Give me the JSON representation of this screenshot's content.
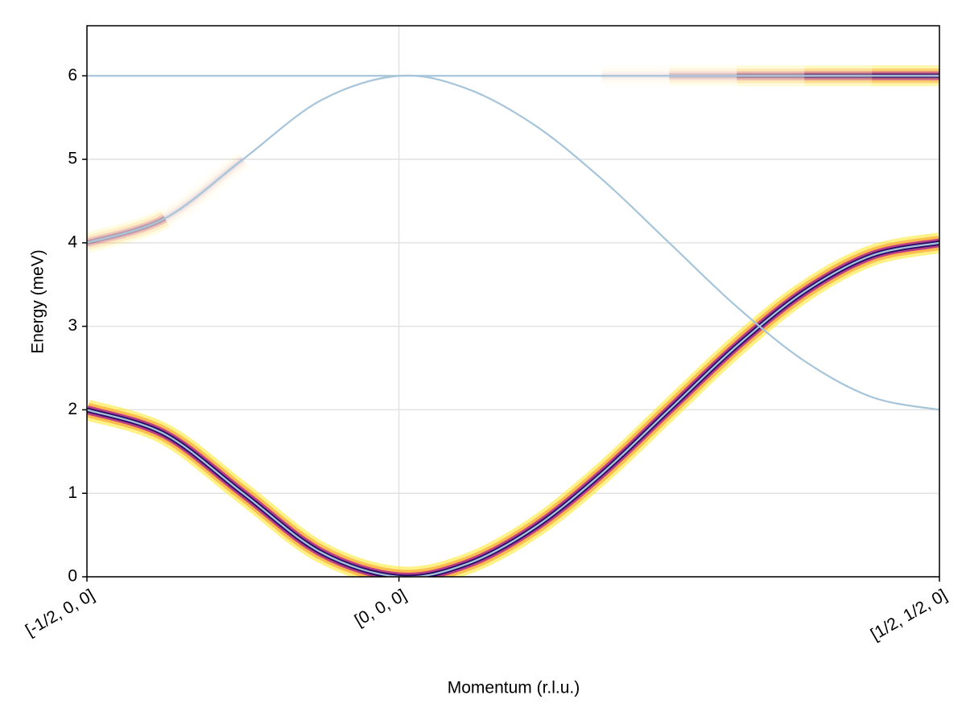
{
  "chart_data": {
    "type": "line",
    "x_label": "Momentum (r.l.u.)",
    "y_label": "Energy (meV)",
    "x": [
      0,
      0.0915,
      0.183,
      0.2745,
      0.366,
      0.4453,
      0.5245,
      0.6038,
      0.683,
      0.7623,
      0.8415,
      0.9208,
      1
    ],
    "series": [
      {
        "color": "#a6c5da",
        "values": [
          2,
          1.7071,
          1,
          0.2929,
          0,
          0.1522,
          0.5858,
          1.2346,
          2,
          2.7654,
          3.4142,
          3.8478,
          4
        ],
        "intensity": [
          1,
          1,
          1,
          1,
          1,
          1,
          1,
          1,
          1,
          1,
          1,
          1,
          1
        ]
      },
      {
        "color": "#a6c5da",
        "values": [
          4,
          4.2929,
          5,
          5.7071,
          6,
          5.8478,
          5.4142,
          4.7654,
          4,
          3.2346,
          2.5858,
          2.1522,
          2
        ],
        "intensity": [
          0.35,
          0.12,
          0,
          0,
          0,
          0,
          0,
          0,
          0,
          0,
          0,
          0,
          0
        ]
      },
      {
        "color": "#a6c5da",
        "values": [
          6,
          6,
          6,
          6,
          6,
          6,
          6,
          6,
          6,
          6,
          6,
          6,
          6
        ],
        "intensity": [
          0,
          0,
          0,
          0,
          0,
          0,
          0,
          0,
          0.08,
          0.2,
          0.4,
          0.6,
          0.8
        ]
      }
    ],
    "xlim": [
      0,
      1
    ],
    "xticks": [
      {
        "value": 0,
        "label": "[-1/2, 0, 0]"
      },
      {
        "value": 0.366,
        "label": "[0, 0, 0]"
      },
      {
        "value": 1,
        "label": "[1/2, 1/2, 0]"
      }
    ],
    "ylim": [
      0,
      6.6
    ],
    "yticks": [
      0,
      1,
      2,
      3,
      4,
      5,
      6
    ],
    "grid": true
  }
}
